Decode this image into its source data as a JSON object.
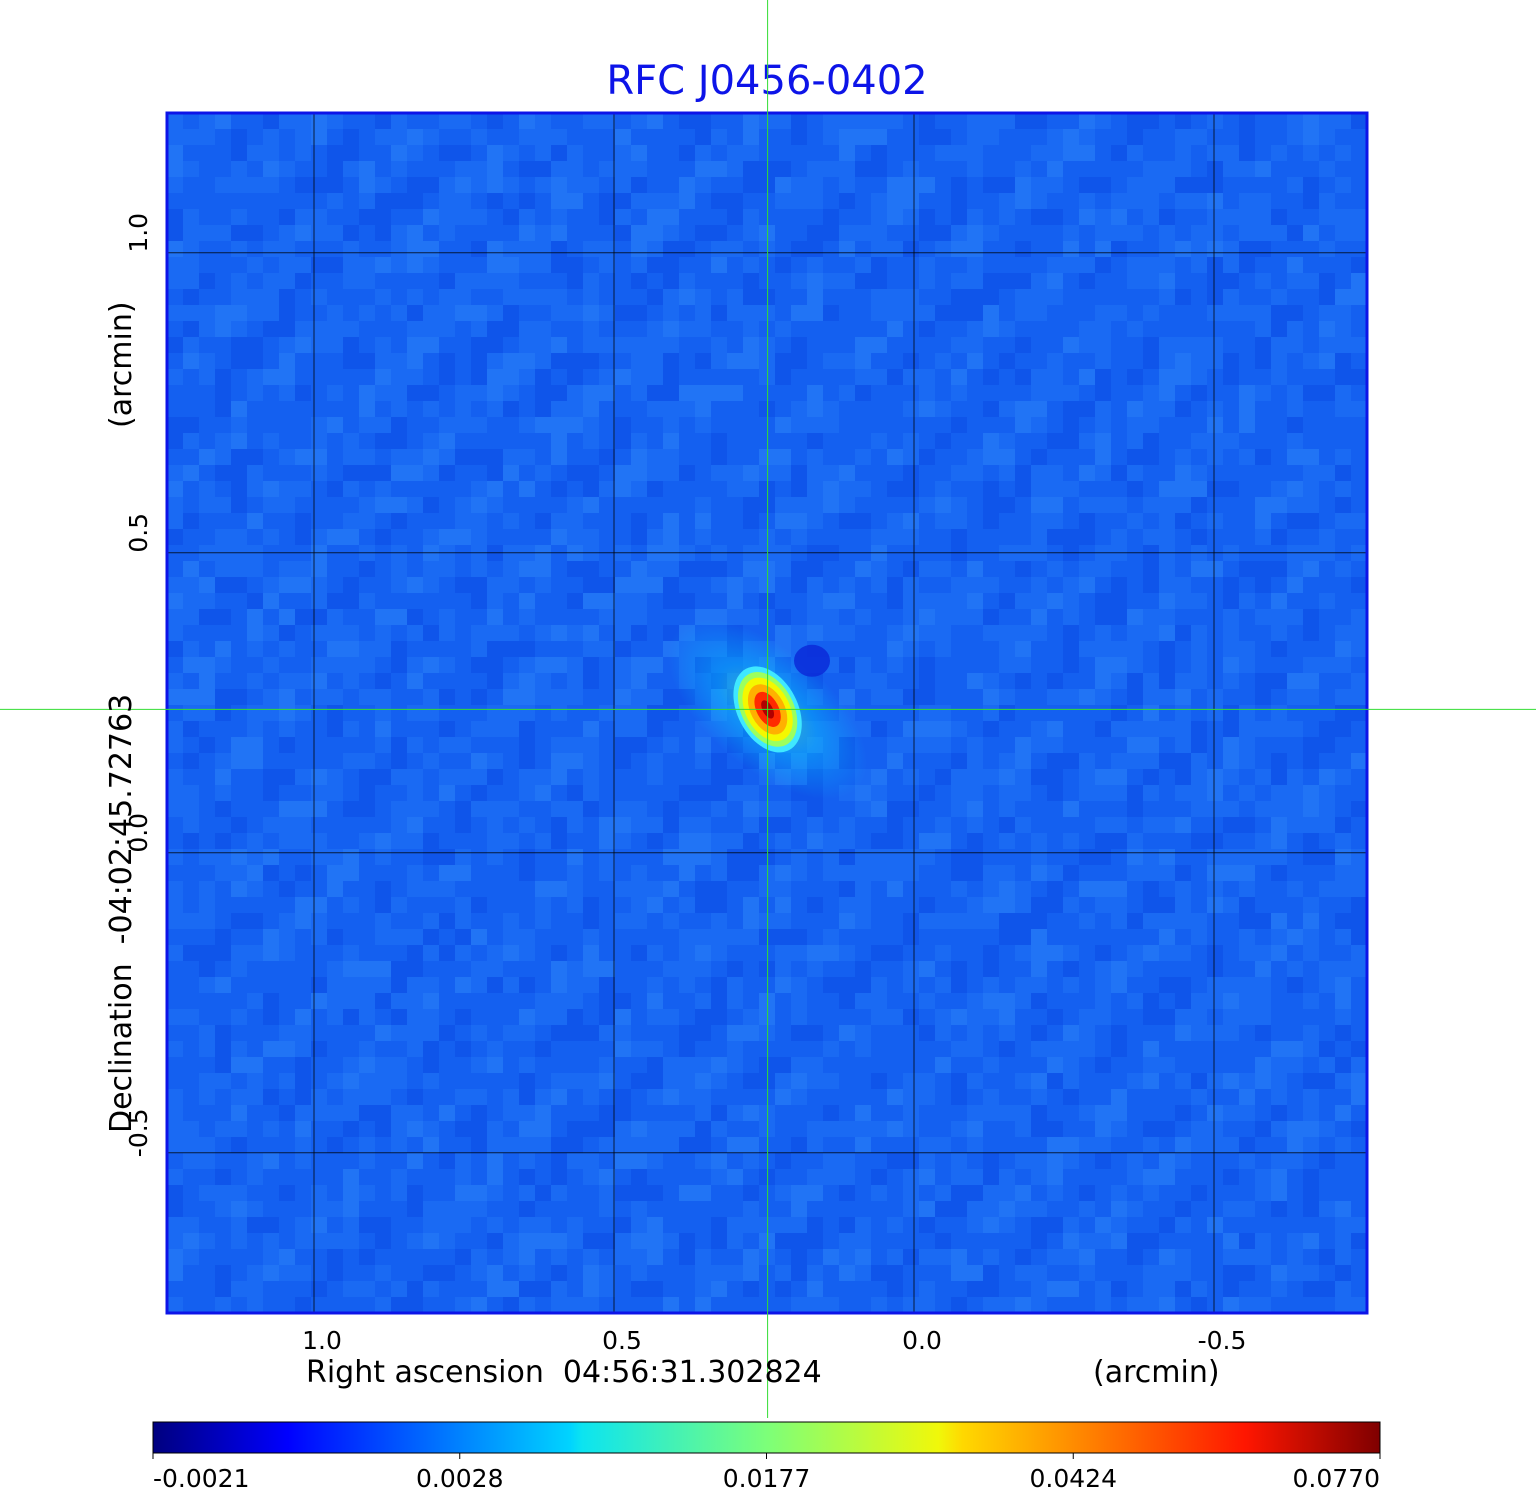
{
  "chart_data": {
    "type": "heatmap",
    "title": "RFC J0456-0402",
    "xlabel": "Right ascension  04:56:31.302824",
    "xlabel_unit": "(arcmin)",
    "ylabel": "Declination  -04:02:45.72763",
    "ylabel_unit": "(arcmin)",
    "x_ticks": [
      1.0,
      0.5,
      0.0,
      -0.5
    ],
    "x_tick_labels": [
      "1.0",
      "0.5",
      "0.0",
      "-0.5"
    ],
    "y_ticks": [
      1.0,
      0.5,
      0.0,
      -0.5
    ],
    "y_tick_labels": [
      "1.0",
      "0.5",
      "0.0",
      "-0.5"
    ],
    "xlim": [
      1.245,
      -0.755
    ],
    "ylim": [
      -0.767,
      1.233
    ],
    "grid": true,
    "crosshair": {
      "x": 0.244,
      "y": 0.239,
      "color": "#33dd33"
    },
    "peak": {
      "x": 0.244,
      "y": 0.239,
      "value": 0.077
    },
    "negative_spot": {
      "x": 0.17,
      "y": 0.32
    },
    "colormap": "jet",
    "colorbar": {
      "ticks": [
        -0.0021,
        0.0028,
        0.0177,
        0.0424,
        0.077
      ],
      "tick_labels": [
        "-0.0021",
        "0.0028",
        "0.0177",
        "0.0424",
        "0.0770"
      ],
      "placement": "bottom"
    },
    "background_color": "#1460f0",
    "frame_color": "#0d14e8"
  }
}
